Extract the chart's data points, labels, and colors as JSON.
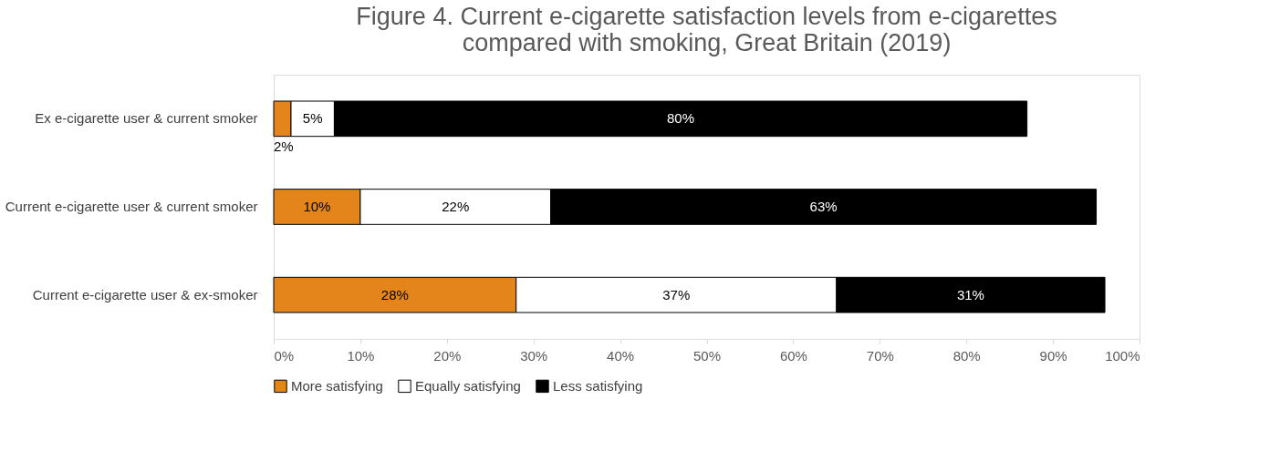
{
  "chart_data": {
    "type": "bar",
    "orientation": "horizontal",
    "stacked": true,
    "title": "Figure 4. Current e-cigarette satisfaction levels from e-cigarettes compared with smoking, Great Britain (2019)",
    "categories": [
      "Ex e-cigarette user & current smoker",
      "Current e-cigarette user & current smoker",
      "Current e-cigarette user & ex-smoker"
    ],
    "series": [
      {
        "name": "More satisfying",
        "color": "#e3851a",
        "values": [
          2,
          10,
          28
        ],
        "value_labels": [
          "2%",
          "10%",
          "28%"
        ]
      },
      {
        "name": "Equally satisfying",
        "color": "#ffffff",
        "values": [
          5,
          22,
          37
        ],
        "value_labels": [
          "5%",
          "22%",
          "37%"
        ]
      },
      {
        "name": "Less satisfying",
        "color": "#000000",
        "values": [
          80,
          63,
          31
        ],
        "value_labels": [
          "80%",
          "63%",
          "31%"
        ]
      }
    ],
    "xlim": [
      0,
      100
    ],
    "xticks": [
      {
        "value": 0,
        "label": "0%"
      },
      {
        "value": 10,
        "label": "10%"
      },
      {
        "value": 20,
        "label": "20%"
      },
      {
        "value": 30,
        "label": "30%"
      },
      {
        "value": 40,
        "label": "40%"
      },
      {
        "value": 50,
        "label": "50%"
      },
      {
        "value": 60,
        "label": "60%"
      },
      {
        "value": 70,
        "label": "70%"
      },
      {
        "value": 80,
        "label": "80%"
      },
      {
        "value": 90,
        "label": "90%"
      },
      {
        "value": 100,
        "label": "100%"
      }
    ],
    "grid": false,
    "legend": "bottom"
  }
}
